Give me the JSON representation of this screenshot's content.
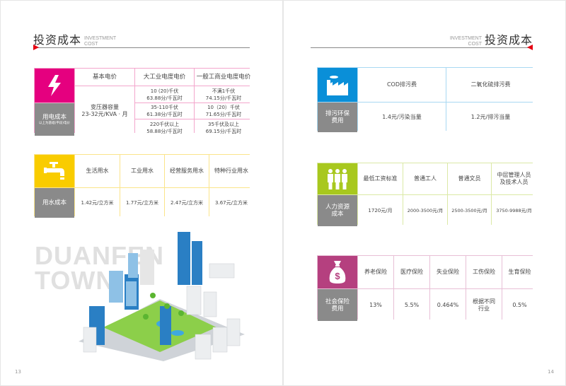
{
  "header": {
    "title": "投资成本",
    "en_line1": "INVESTMENT",
    "en_line2": "COST"
  },
  "left_page": {
    "page_number": "13",
    "brand_line1": "DUANFEN",
    "brand_line2": "TOWN"
  },
  "right_page": {
    "page_number": "14"
  },
  "electricity": {
    "icon": "lightning-bolt-icon",
    "color": "#e5007f",
    "label": "用电成本",
    "note": "以上为基础(平段)电价",
    "headers": [
      "基本电价",
      "大工业电度电价",
      "一般工商业电度电价"
    ],
    "base_line1": "变压器容量",
    "base_line2": "23-32元/KVA · 月",
    "rows": [
      [
        "10 (20)千伏",
        "63.88分/千瓦时",
        "不满1千伏",
        "74.15分/千瓦时"
      ],
      [
        "35-110千伏",
        "61.38分/千瓦时",
        "10（20）千伏",
        "71.65分/千瓦时"
      ],
      [
        "220千伏以上",
        "58.88分/千瓦时",
        "35千伏及以上",
        "69.15分/千瓦时"
      ]
    ]
  },
  "water": {
    "icon": "faucet-icon",
    "color": "#f9cc00",
    "label": "用水成本",
    "headers": [
      "生活用水",
      "工业用水",
      "经营服务用水",
      "特种行业用水"
    ],
    "values": [
      "1.42元/立方米",
      "1.77元/立方米",
      "2.47元/立方米",
      "3.67元/立方米"
    ]
  },
  "pollution": {
    "icon": "factory-icon",
    "color": "#0a8fd8",
    "label_line1": "排污环保",
    "label_line2": "费用",
    "headers": [
      "COD排污费",
      "二氧化硫排污费"
    ],
    "values": [
      "1.4元/污染当量",
      "1.2元/排污当量"
    ]
  },
  "hr": {
    "icon": "people-icon",
    "color": "#a8c81e",
    "label_line1": "人力资源",
    "label_line2": "成本",
    "headers": [
      "最低工资标准",
      "普通工人",
      "普通文员",
      "中层管理人员及技术人员"
    ],
    "values": [
      "1720元/月",
      "2000-3500元/月",
      "2500-3500元/月",
      "3750-9988元/月"
    ]
  },
  "insurance": {
    "icon": "money-bag-icon",
    "color": "#b5407f",
    "label_line1": "社会保险",
    "label_line2": "费用",
    "headers": [
      "养老保险",
      "医疗保险",
      "失业保险",
      "工伤保险",
      "生育保险"
    ],
    "values": [
      "13%",
      "5.5%",
      "0.464%",
      "根据不同行业",
      "0.5%"
    ]
  }
}
